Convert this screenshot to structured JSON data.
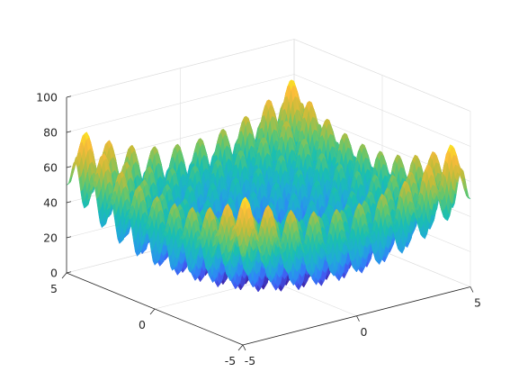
{
  "chart_data": {
    "type": "surface",
    "function": "z = 20 + x^2 + y^2 - 10*(cos(2*pi*x) + cos(2*pi*y))",
    "x": {
      "min": -5,
      "max": 5,
      "ticks": [
        -5,
        0,
        5
      ],
      "tick_labels": [
        "-5",
        "0",
        "5"
      ]
    },
    "y": {
      "min": -5,
      "max": 5,
      "ticks": [
        -5,
        0,
        5
      ],
      "tick_labels": [
        "-5",
        "0",
        "5"
      ]
    },
    "z": {
      "min": 0,
      "max": 100,
      "ticks": [
        0,
        20,
        40,
        60,
        80,
        100
      ],
      "tick_labels": [
        "0",
        "20",
        "40",
        "60",
        "80",
        "100"
      ]
    },
    "colormap": "parula",
    "colormap_stops": [
      "#3e26a8",
      "#4358f0",
      "#2e87f7",
      "#20abd7",
      "#1abfb0",
      "#63c66d",
      "#c3bc3a",
      "#fbbb3a",
      "#f9fb15"
    ],
    "grid": true,
    "box": true,
    "title": "",
    "xlabel": "",
    "ylabel": "",
    "zlabel": ""
  }
}
